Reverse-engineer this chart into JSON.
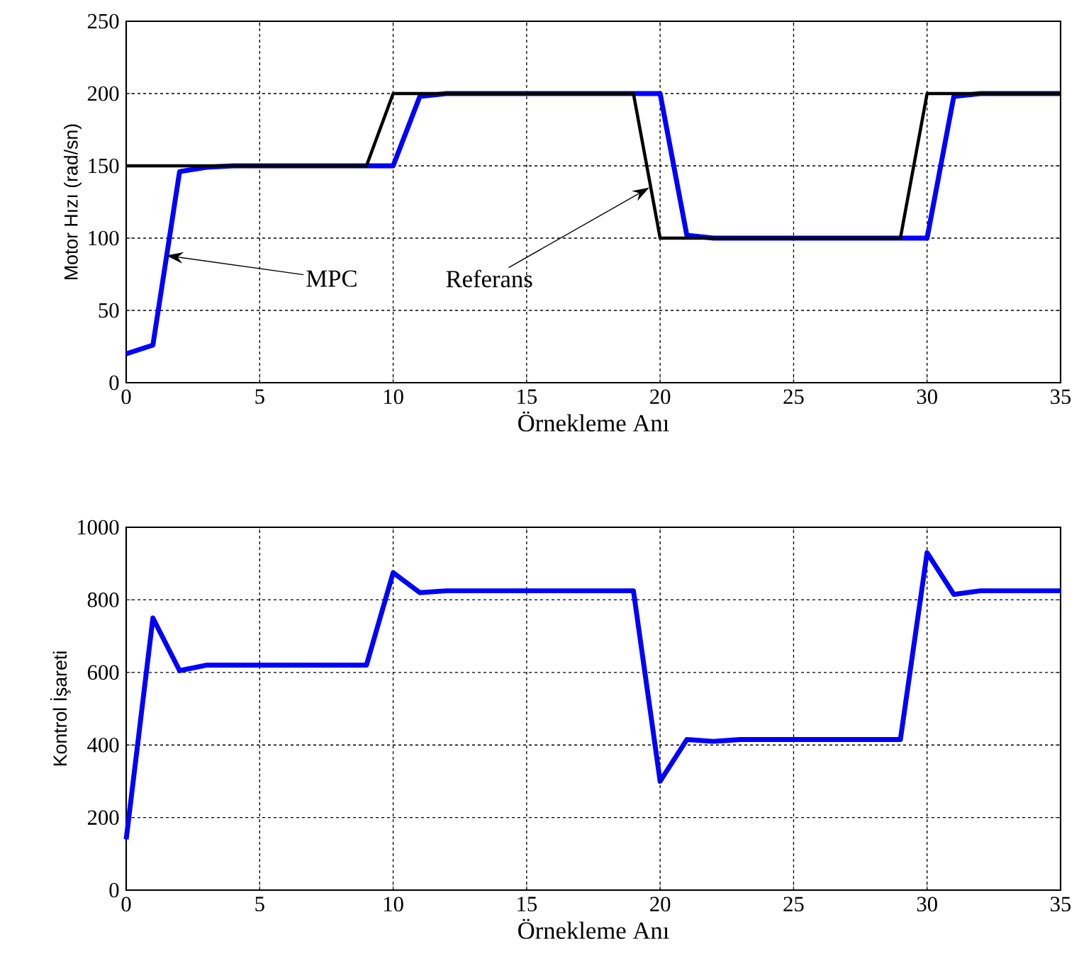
{
  "chart_data": [
    {
      "type": "line",
      "xlabel": "Örnekleme Anı",
      "ylabel": "Motor Hızı (rad/sn)",
      "x": [
        0,
        1,
        2,
        3,
        4,
        5,
        6,
        7,
        8,
        9,
        10,
        11,
        12,
        13,
        14,
        15,
        16,
        17,
        18,
        19,
        20,
        21,
        22,
        23,
        24,
        25,
        26,
        27,
        28,
        29,
        30,
        31,
        32,
        33,
        34,
        35
      ],
      "series": [
        {
          "color": "#0000ff",
          "values": [
            20,
            26,
            146,
            149,
            150,
            150,
            150,
            150,
            150,
            150,
            150,
            198,
            200,
            200,
            200,
            200,
            200,
            200,
            200,
            200,
            200,
            102,
            100,
            100,
            100,
            100,
            100,
            100,
            100,
            100,
            100,
            198,
            200,
            200,
            200,
            200
          ]
        },
        {
          "color": "#000000",
          "values": [
            150,
            150,
            150,
            150,
            150,
            150,
            150,
            150,
            150,
            150,
            200,
            200,
            200,
            200,
            200,
            200,
            200,
            200,
            200,
            200,
            100,
            100,
            100,
            100,
            100,
            100,
            100,
            100,
            100,
            100,
            200,
            200,
            200,
            200,
            200,
            200
          ]
        }
      ],
      "xlim": [
        0,
        35
      ],
      "ylim": [
        0,
        250
      ],
      "xticks": [
        0,
        5,
        10,
        15,
        20,
        25,
        30,
        35
      ],
      "yticks": [
        0,
        50,
        100,
        150,
        200,
        250
      ],
      "grid": true,
      "annotations": [
        {
          "text": "MPC",
          "x": 1.5,
          "y": 88
        },
        {
          "text": "Referans",
          "x": 19.6,
          "y": 135
        }
      ]
    },
    {
      "type": "line",
      "xlabel": "Örnekleme Anı",
      "ylabel": "Kontrol İşareti",
      "x": [
        0,
        1,
        2,
        3,
        4,
        5,
        6,
        7,
        8,
        9,
        10,
        11,
        12,
        13,
        14,
        15,
        16,
        17,
        18,
        19,
        20,
        21,
        22,
        23,
        24,
        25,
        26,
        27,
        28,
        29,
        30,
        31,
        32,
        33,
        34,
        35
      ],
      "series": [
        {
          "color": "#0000ff",
          "values": [
            140,
            750,
            605,
            620,
            620,
            620,
            620,
            620,
            620,
            620,
            875,
            820,
            825,
            825,
            825,
            825,
            825,
            825,
            825,
            825,
            300,
            415,
            410,
            415,
            415,
            415,
            415,
            415,
            415,
            415,
            930,
            815,
            825,
            825,
            825,
            825
          ]
        }
      ],
      "xlim": [
        0,
        35
      ],
      "ylim": [
        0,
        1000
      ],
      "xticks": [
        0,
        5,
        10,
        15,
        20,
        25,
        30,
        35
      ],
      "yticks": [
        0,
        200,
        400,
        600,
        800,
        1000
      ],
      "grid": true
    }
  ]
}
